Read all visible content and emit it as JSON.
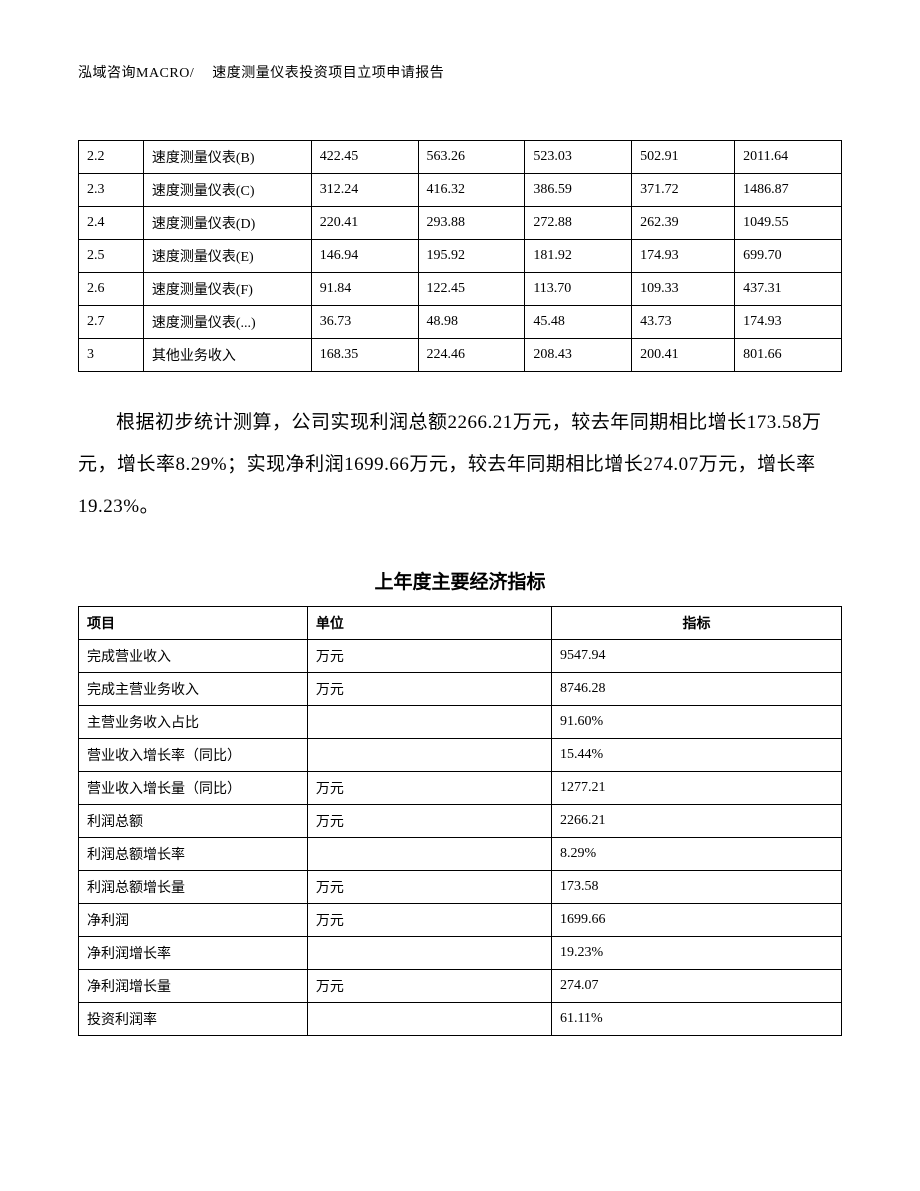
{
  "header": {
    "left": "泓域咨询MACRO/",
    "right": "速度测量仪表投资项目立项申请报告"
  },
  "table1": {
    "rows": [
      [
        "2.2",
        "速度测量仪表(B)",
        "422.45",
        "563.26",
        "523.03",
        "502.91",
        "2011.64"
      ],
      [
        "2.3",
        "速度测量仪表(C)",
        "312.24",
        "416.32",
        "386.59",
        "371.72",
        "1486.87"
      ],
      [
        "2.4",
        "速度测量仪表(D)",
        "220.41",
        "293.88",
        "272.88",
        "262.39",
        "1049.55"
      ],
      [
        "2.5",
        "速度测量仪表(E)",
        "146.94",
        "195.92",
        "181.92",
        "174.93",
        "699.70"
      ],
      [
        "2.6",
        "速度测量仪表(F)",
        "91.84",
        "122.45",
        "113.70",
        "109.33",
        "437.31"
      ],
      [
        "2.7",
        "速度测量仪表(...)",
        "36.73",
        "48.98",
        "45.48",
        "43.73",
        "174.93"
      ],
      [
        "3",
        "其他业务收入",
        "168.35",
        "224.46",
        "208.43",
        "200.41",
        "801.66"
      ]
    ]
  },
  "paragraph": "根据初步统计测算，公司实现利润总额2266.21万元，较去年同期相比增长173.58万元，增长率8.29%；实现净利润1699.66万元，较去年同期相比增长274.07万元，增长率19.23%。",
  "section_title": "上年度主要经济指标",
  "table2": {
    "headers": [
      "项目",
      "单位",
      "指标"
    ],
    "rows": [
      [
        "完成营业收入",
        "万元",
        "9547.94"
      ],
      [
        "完成主营业务收入",
        "万元",
        "8746.28"
      ],
      [
        "主营业务收入占比",
        "",
        "91.60%"
      ],
      [
        "营业收入增长率（同比）",
        "",
        "15.44%"
      ],
      [
        "营业收入增长量（同比）",
        "万元",
        "1277.21"
      ],
      [
        "利润总额",
        "万元",
        "2266.21"
      ],
      [
        "利润总额增长率",
        "",
        "8.29%"
      ],
      [
        "利润总额增长量",
        "万元",
        "173.58"
      ],
      [
        "净利润",
        "万元",
        "1699.66"
      ],
      [
        "净利润增长率",
        "",
        "19.23%"
      ],
      [
        "净利润增长量",
        "万元",
        "274.07"
      ],
      [
        "投资利润率",
        "",
        "61.11%"
      ]
    ]
  }
}
